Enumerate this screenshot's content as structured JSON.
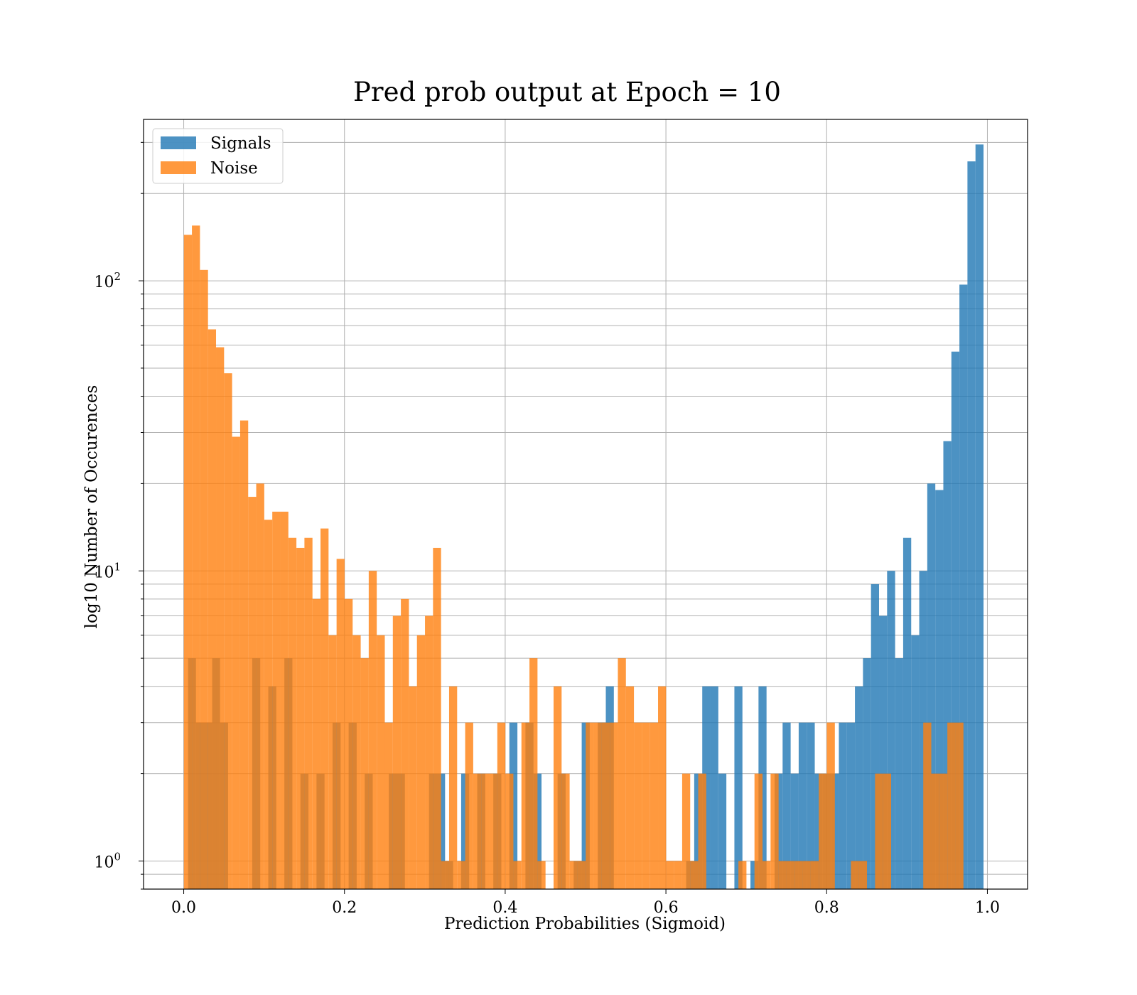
{
  "chart_data": {
    "type": "bar",
    "title": "Pred prob output at Epoch = 10",
    "xlabel": "Prediction Probabilities (Sigmoid)",
    "ylabel": "log10 Number of Occurences",
    "xlim": [
      -0.05,
      1.05
    ],
    "ylim": [
      0.8,
      360
    ],
    "yscale": "log",
    "x_ticks": [
      0.0,
      0.2,
      0.4,
      0.6,
      0.8,
      1.0
    ],
    "x_tick_labels": [
      "0.0",
      "0.2",
      "0.4",
      "0.6",
      "0.8",
      "1.0"
    ],
    "y_ticks": [
      1,
      10,
      100
    ],
    "grid": true,
    "legend_position": "top-left",
    "colors": {
      "signals": "#1f77b4",
      "noise": "#ff7f0e"
    },
    "series": [
      {
        "name": "Signals",
        "bins": [
          [
            0.0054,
            0.0152,
            5
          ],
          [
            0.0152,
            0.0354,
            3
          ],
          [
            0.0354,
            0.0452,
            5
          ],
          [
            0.0452,
            0.0552,
            3
          ],
          [
            0.0852,
            0.0952,
            5
          ],
          [
            0.1052,
            0.1152,
            4
          ],
          [
            0.1252,
            0.1352,
            5
          ],
          [
            0.1452,
            0.1552,
            2
          ],
          [
            0.1652,
            0.1752,
            2
          ],
          [
            0.1852,
            0.1952,
            3
          ],
          [
            0.2052,
            0.2152,
            3
          ],
          [
            0.2252,
            0.2352,
            2
          ],
          [
            0.2552,
            0.2652,
            2
          ],
          [
            0.2652,
            0.2752,
            2
          ],
          [
            0.3052,
            0.3152,
            2
          ],
          [
            0.3152,
            0.3252,
            2
          ],
          [
            0.3252,
            0.3352,
            1
          ],
          [
            0.3452,
            0.3552,
            2
          ],
          [
            0.3652,
            0.3752,
            2
          ],
          [
            0.3852,
            0.3952,
            2
          ],
          [
            0.4052,
            0.4152,
            3
          ],
          [
            0.4252,
            0.4352,
            3
          ],
          [
            0.4352,
            0.4452,
            2
          ],
          [
            0.4652,
            0.4752,
            2
          ],
          [
            0.4852,
            0.4952,
            1
          ],
          [
            0.4952,
            0.5052,
            3
          ],
          [
            0.5152,
            0.5252,
            3
          ],
          [
            0.5252,
            0.5352,
            4
          ],
          [
            0.6252,
            0.6352,
            1
          ],
          [
            0.6352,
            0.6452,
            2
          ],
          [
            0.6452,
            0.6552,
            4
          ],
          [
            0.6552,
            0.6652,
            4
          ],
          [
            0.6652,
            0.6752,
            2
          ],
          [
            0.6852,
            0.6952,
            4
          ],
          [
            0.7052,
            0.7152,
            1
          ],
          [
            0.7152,
            0.7252,
            4
          ],
          [
            0.7352,
            0.7452,
            2
          ],
          [
            0.7452,
            0.7552,
            3
          ],
          [
            0.7552,
            0.7652,
            2
          ],
          [
            0.7652,
            0.7752,
            3
          ],
          [
            0.7752,
            0.7852,
            3
          ],
          [
            0.7852,
            0.7952,
            2
          ],
          [
            0.7952,
            0.8052,
            2
          ],
          [
            0.8052,
            0.8152,
            2
          ],
          [
            0.8152,
            0.8252,
            3
          ],
          [
            0.8252,
            0.8352,
            3
          ],
          [
            0.8352,
            0.8452,
            4
          ],
          [
            0.8452,
            0.8552,
            5
          ],
          [
            0.8552,
            0.8652,
            9
          ],
          [
            0.8652,
            0.8752,
            7
          ],
          [
            0.8752,
            0.8852,
            10
          ],
          [
            0.8852,
            0.8952,
            5
          ],
          [
            0.8952,
            0.9052,
            13
          ],
          [
            0.9052,
            0.9152,
            6
          ],
          [
            0.9152,
            0.9252,
            10
          ],
          [
            0.9252,
            0.9352,
            20
          ],
          [
            0.9352,
            0.9452,
            19
          ],
          [
            0.9452,
            0.9552,
            28
          ],
          [
            0.9552,
            0.9652,
            57
          ],
          [
            0.9652,
            0.9752,
            97
          ],
          [
            0.9752,
            0.9852,
            258
          ],
          [
            0.9852,
            0.9952,
            295
          ]
        ]
      },
      {
        "name": "Noise",
        "bins": [
          [
            0.0002,
            0.0102,
            144
          ],
          [
            0.0102,
            0.0202,
            155
          ],
          [
            0.0202,
            0.0302,
            109
          ],
          [
            0.0302,
            0.0402,
            68
          ],
          [
            0.0402,
            0.0502,
            59
          ],
          [
            0.0502,
            0.0602,
            48
          ],
          [
            0.0602,
            0.0702,
            29
          ],
          [
            0.0702,
            0.0802,
            33
          ],
          [
            0.0802,
            0.0902,
            18
          ],
          [
            0.0902,
            0.1002,
            20
          ],
          [
            0.1002,
            0.1102,
            15
          ],
          [
            0.1102,
            0.1202,
            16
          ],
          [
            0.1202,
            0.1302,
            16
          ],
          [
            0.1302,
            0.1402,
            13
          ],
          [
            0.1402,
            0.1502,
            12
          ],
          [
            0.1502,
            0.1602,
            13
          ],
          [
            0.1602,
            0.1702,
            8
          ],
          [
            0.1702,
            0.1802,
            14
          ],
          [
            0.1802,
            0.1902,
            6
          ],
          [
            0.1902,
            0.2002,
            11
          ],
          [
            0.2002,
            0.2102,
            8
          ],
          [
            0.2102,
            0.2202,
            6
          ],
          [
            0.2202,
            0.2302,
            5
          ],
          [
            0.2302,
            0.2402,
            10
          ],
          [
            0.2402,
            0.2502,
            6
          ],
          [
            0.2502,
            0.2602,
            3
          ],
          [
            0.2602,
            0.2702,
            7
          ],
          [
            0.2702,
            0.2802,
            8
          ],
          [
            0.2802,
            0.2902,
            4
          ],
          [
            0.2902,
            0.3002,
            6
          ],
          [
            0.3002,
            0.3102,
            7
          ],
          [
            0.3102,
            0.3202,
            12
          ],
          [
            0.3202,
            0.3302,
            1
          ],
          [
            0.3302,
            0.3402,
            4
          ],
          [
            0.3402,
            0.3502,
            1
          ],
          [
            0.3502,
            0.3602,
            3
          ],
          [
            0.3602,
            0.3702,
            2
          ],
          [
            0.3702,
            0.3802,
            2
          ],
          [
            0.3802,
            0.3902,
            2
          ],
          [
            0.3902,
            0.4002,
            3
          ],
          [
            0.4002,
            0.4102,
            2
          ],
          [
            0.4102,
            0.4202,
            1
          ],
          [
            0.4202,
            0.4302,
            3
          ],
          [
            0.4302,
            0.4402,
            5
          ],
          [
            0.4402,
            0.4502,
            1
          ],
          [
            0.4602,
            0.4702,
            4
          ],
          [
            0.4702,
            0.4802,
            2
          ],
          [
            0.4802,
            0.4902,
            1
          ],
          [
            0.4902,
            0.5002,
            1
          ],
          [
            0.5002,
            0.5102,
            3
          ],
          [
            0.5102,
            0.5202,
            3
          ],
          [
            0.5202,
            0.5302,
            3
          ],
          [
            0.5302,
            0.5402,
            3
          ],
          [
            0.5402,
            0.5502,
            5
          ],
          [
            0.5502,
            0.5602,
            4
          ],
          [
            0.5602,
            0.5702,
            3
          ],
          [
            0.5702,
            0.5802,
            3
          ],
          [
            0.5802,
            0.5902,
            3
          ],
          [
            0.5902,
            0.6002,
            4
          ],
          [
            0.6002,
            0.6102,
            1
          ],
          [
            0.6102,
            0.6202,
            1
          ],
          [
            0.6202,
            0.6302,
            2
          ],
          [
            0.6302,
            0.6402,
            1
          ],
          [
            0.6402,
            0.6502,
            2
          ],
          [
            0.6902,
            0.7002,
            1
          ],
          [
            0.7102,
            0.7202,
            2
          ],
          [
            0.7202,
            0.7302,
            1
          ],
          [
            0.7302,
            0.7402,
            2
          ],
          [
            0.7402,
            0.7502,
            1
          ],
          [
            0.7502,
            0.7602,
            1
          ],
          [
            0.7602,
            0.7702,
            1
          ],
          [
            0.7702,
            0.7802,
            1
          ],
          [
            0.7802,
            0.7902,
            1
          ],
          [
            0.7902,
            0.8002,
            2
          ],
          [
            0.8002,
            0.8102,
            3
          ],
          [
            0.8302,
            0.8402,
            1
          ],
          [
            0.8402,
            0.8502,
            1
          ],
          [
            0.8602,
            0.8702,
            2
          ],
          [
            0.8702,
            0.8802,
            2
          ],
          [
            0.9202,
            0.9302,
            3
          ],
          [
            0.9302,
            0.9402,
            2
          ],
          [
            0.9402,
            0.9502,
            2
          ],
          [
            0.9502,
            0.9602,
            3
          ],
          [
            0.9602,
            0.9702,
            3
          ]
        ]
      }
    ]
  }
}
